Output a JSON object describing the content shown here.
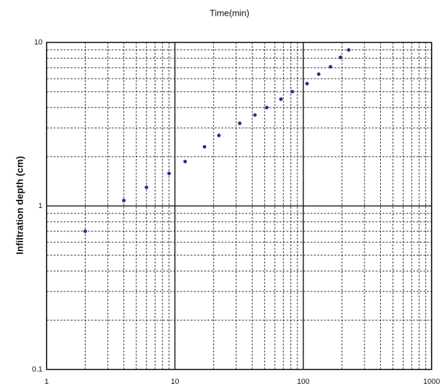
{
  "chart_data": {
    "type": "scatter",
    "title": "Time(min)",
    "y_label": "Infiltration depth (cm)",
    "log_x": true,
    "log_y": true,
    "grid": true,
    "color": "#22308a",
    "xlim": [
      1,
      1000
    ],
    "ylim": [
      0.1,
      10
    ],
    "xticks": [
      1,
      10,
      100,
      1000
    ],
    "yticks": [
      0.1,
      1,
      10
    ],
    "x": [
      2,
      4,
      6,
      9,
      12,
      17,
      22,
      32,
      42,
      52,
      67,
      82,
      107,
      132,
      163,
      195,
      226
    ],
    "values": [
      0.7,
      1.08,
      1.3,
      1.58,
      1.87,
      2.3,
      2.7,
      3.2,
      3.6,
      4.0,
      4.5,
      5.0,
      5.6,
      6.4,
      7.1,
      8.1,
      9.0
    ]
  }
}
